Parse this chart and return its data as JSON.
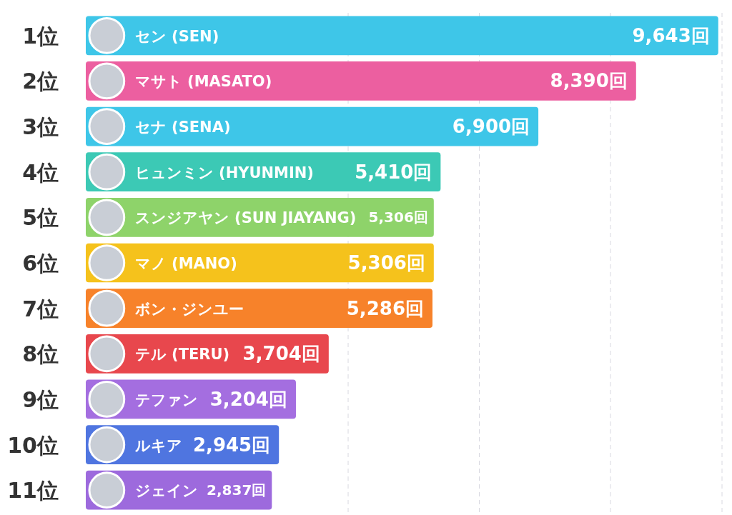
{
  "chart_data": {
    "type": "bar",
    "orientation": "horizontal",
    "categories": [
      "1位",
      "2位",
      "3位",
      "4位",
      "5位",
      "6位",
      "7位",
      "8位",
      "9位",
      "10位",
      "11位"
    ],
    "values": [
      9643,
      8390,
      6900,
      5410,
      5306,
      5306,
      5286,
      3704,
      3204,
      2945,
      2837
    ],
    "value_labels": [
      "9,643回",
      "8,390回",
      "6,900回",
      "5,410回",
      "5,306回",
      "5,306回",
      "5,286回",
      "3,704回",
      "3,204回",
      "2,945回",
      "2,837回"
    ],
    "colors": [
      "#3ec6e8",
      "#ec5fa0",
      "#3ec6e8",
      "#3cc9b5",
      "#8ed36a",
      "#f5c21c",
      "#f7822a",
      "#e8474d",
      "#a46ee0",
      "#4f75e0",
      "#9d6add"
    ],
    "annotations": [
      {
        "text": "セン (SEN)",
        "y": "1位"
      },
      {
        "text": "マサト (MASATO)",
        "y": "2位"
      },
      {
        "text": "セナ (SENA)",
        "y": "3位"
      },
      {
        "text": "ヒュンミン (HYUNMIN)",
        "y": "4位"
      },
      {
        "text": "スンジアヤン (SUN JIAYANG)",
        "y": "5位"
      },
      {
        "text": "マノ (MANO)",
        "y": "6位"
      },
      {
        "text": "ボン・ジンユー",
        "y": "7位"
      },
      {
        "text": "テル (TERU)",
        "y": "8位"
      },
      {
        "text": "テファン",
        "y": "9位"
      },
      {
        "text": "ルキア",
        "y": "10位"
      },
      {
        "text": "ジェイン",
        "y": "11位"
      }
    ],
    "xlim": [
      0,
      9700
    ],
    "xticks": [
      {
        "value": 4000,
        "label": null
      },
      {
        "value": 6000,
        "label": null
      },
      {
        "value": 8000,
        "label": null
      },
      {
        "value": 9700,
        "label": null
      }
    ],
    "grid": "x",
    "tick_labels": "y"
  }
}
